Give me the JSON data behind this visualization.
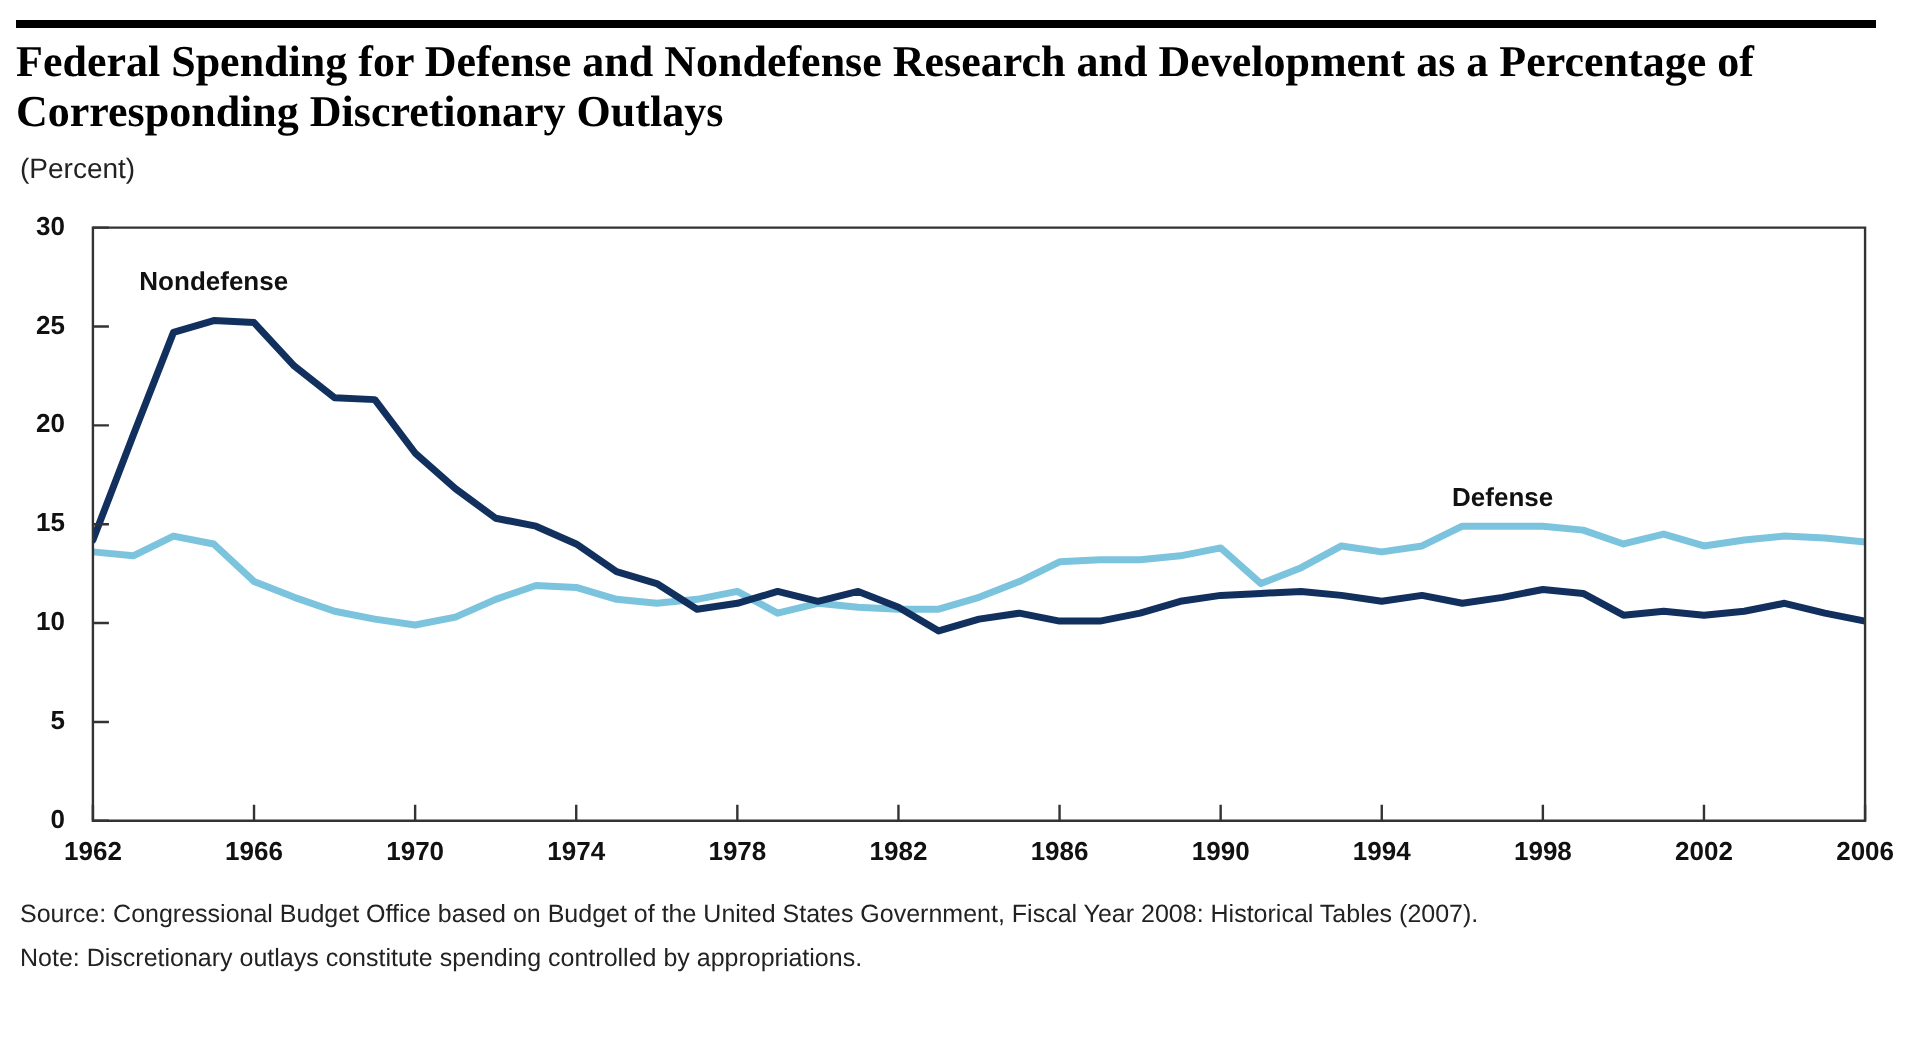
{
  "chart_data": {
    "type": "line",
    "title": "Federal Spending for Defense and Nondefense Research and Development as a Percentage of Corresponding Discretionary Outlays",
    "ylabel": "(Percent)",
    "x": [
      1962,
      1963,
      1964,
      1965,
      1966,
      1967,
      1968,
      1969,
      1970,
      1971,
      1972,
      1973,
      1974,
      1975,
      1976,
      1977,
      1978,
      1979,
      1980,
      1981,
      1982,
      1983,
      1984,
      1985,
      1986,
      1987,
      1988,
      1989,
      1990,
      1991,
      1992,
      1993,
      1994,
      1995,
      1996,
      1997,
      1998,
      1999,
      2000,
      2001,
      2002,
      2003,
      2004,
      2005,
      2006
    ],
    "series": [
      {
        "name": "Nondefense",
        "color": "#12305e",
        "values": [
          14.2,
          19.5,
          24.7,
          25.3,
          25.2,
          23.0,
          21.4,
          21.3,
          18.6,
          16.8,
          15.3,
          14.9,
          14.0,
          12.6,
          12.0,
          10.7,
          11.0,
          11.6,
          11.1,
          11.6,
          10.8,
          9.6,
          10.2,
          10.5,
          10.1,
          10.1,
          10.5,
          11.1,
          11.4,
          11.5,
          11.6,
          11.4,
          11.1,
          11.4,
          11.0,
          11.3,
          11.7,
          11.5,
          10.4,
          10.6,
          10.4,
          10.6,
          11.0,
          10.5,
          10.1
        ]
      },
      {
        "name": "Defense",
        "color": "#7cc4de",
        "values": [
          13.6,
          13.4,
          14.4,
          14.0,
          12.1,
          11.3,
          10.6,
          10.2,
          9.9,
          10.3,
          11.2,
          11.9,
          11.8,
          11.2,
          11.0,
          11.2,
          11.6,
          10.5,
          11.0,
          10.8,
          10.7,
          10.7,
          11.3,
          12.1,
          13.1,
          13.2,
          13.2,
          13.4,
          13.8,
          12.0,
          12.8,
          13.9,
          13.6,
          13.9,
          14.9,
          14.9,
          14.9,
          14.7,
          14.0,
          14.5,
          13.9,
          14.2,
          14.4,
          14.3,
          14.1
        ]
      }
    ],
    "xlim": [
      1962,
      2006
    ],
    "xticks": [
      1962,
      1966,
      1970,
      1974,
      1978,
      1982,
      1986,
      1990,
      1994,
      1998,
      2002,
      2006
    ],
    "ylim": [
      0,
      30
    ],
    "yticks": [
      0,
      5,
      10,
      15,
      20,
      25,
      30
    ],
    "grid": false,
    "legend": false,
    "marker": "none",
    "line_style": "solid",
    "annotations": [
      "Source: Congressional Budget Office based on Budget of the United States Government, Fiscal Year 2008: Historical Tables (2007).",
      "Note: Discretionary outlays constitute spending controlled by appropriations."
    ]
  }
}
